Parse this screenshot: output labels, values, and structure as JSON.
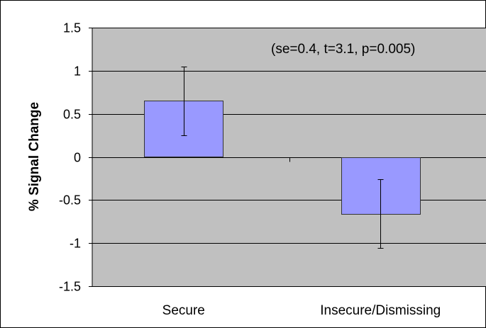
{
  "chart_data": {
    "type": "bar",
    "categories": [
      "Secure",
      "Insecure/Dismissing"
    ],
    "values": [
      0.65,
      -0.66
    ],
    "error_bars": [
      0.4,
      0.4
    ],
    "ylabel": "% Signal Change",
    "xlabel": "",
    "ylim": [
      -1.5,
      1.5
    ],
    "yticks": [
      1.5,
      1,
      0.5,
      0,
      -0.5,
      -1,
      -1.5
    ],
    "ytick_labels": [
      "1.5",
      "1",
      "0.5",
      "0",
      "-0.5",
      "-1",
      "-1.5"
    ],
    "annotation": "(se=0.4, t=3.1, p=0.005)",
    "grid": true,
    "legend": "none",
    "colors": {
      "plot_background": "#c0c0c0",
      "bar_fill": "#9999ff",
      "bar_stroke": "#333333",
      "gridline": "#000000",
      "axis": "#000000"
    }
  }
}
